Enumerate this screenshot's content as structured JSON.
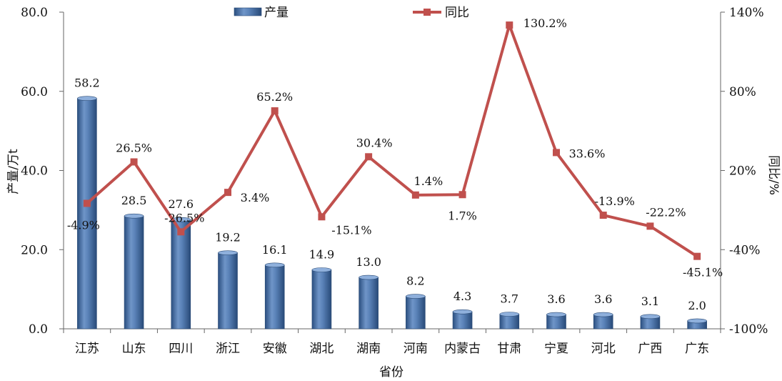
{
  "chart_data": {
    "type": "bar",
    "x_title": "省份",
    "categories": [
      "江苏",
      "山东",
      "四川",
      "浙江",
      "安徽",
      "湖北",
      "湖南",
      "河南",
      "内蒙古",
      "甘肃",
      "宁夏",
      "河北",
      "广西",
      "广东"
    ],
    "series": [
      {
        "name": "产量",
        "type": "bar",
        "axis": "left",
        "color": "#4a72a8",
        "values": [
          58.2,
          28.5,
          27.6,
          19.2,
          16.1,
          14.9,
          13.0,
          8.2,
          4.3,
          3.7,
          3.6,
          3.6,
          3.1,
          2.0
        ],
        "labels": [
          "58.2",
          "28.5",
          "27.6",
          "19.2",
          "16.1",
          "14.9",
          "13.0",
          "8.2",
          "4.3",
          "3.7",
          "3.6",
          "3.6",
          "3.1",
          "2.0"
        ]
      },
      {
        "name": "同比",
        "type": "line",
        "axis": "right",
        "color": "#c0504d",
        "values": [
          -4.9,
          26.5,
          -26.5,
          3.4,
          65.2,
          -15.1,
          30.4,
          1.4,
          1.7,
          130.2,
          33.6,
          -13.9,
          -22.2,
          -45.1
        ],
        "labels": [
          "-4.9%",
          "26.5%",
          "-26.5%",
          "3.4%",
          "65.2%",
          "-15.1%",
          "30.4%",
          "1.4%",
          "1.7%",
          "130.2%",
          "33.6%",
          "-13.9%",
          "-22.2%",
          "-45.1%"
        ]
      }
    ],
    "y_left": {
      "label": "产量/万t",
      "min": 0,
      "max": 80,
      "ticks": [
        0,
        20,
        40,
        60,
        80
      ],
      "tick_labels": [
        "0.0",
        "20.0",
        "40.0",
        "60.0",
        "80.0"
      ]
    },
    "y_right": {
      "label": "同比/%",
      "min": -100,
      "max": 140,
      "ticks": [
        -100,
        -40,
        20,
        80,
        140
      ],
      "tick_labels": [
        "-100%",
        "-40%",
        "20%",
        "80%",
        "140%"
      ]
    },
    "legend_position": "top",
    "grid": false
  }
}
